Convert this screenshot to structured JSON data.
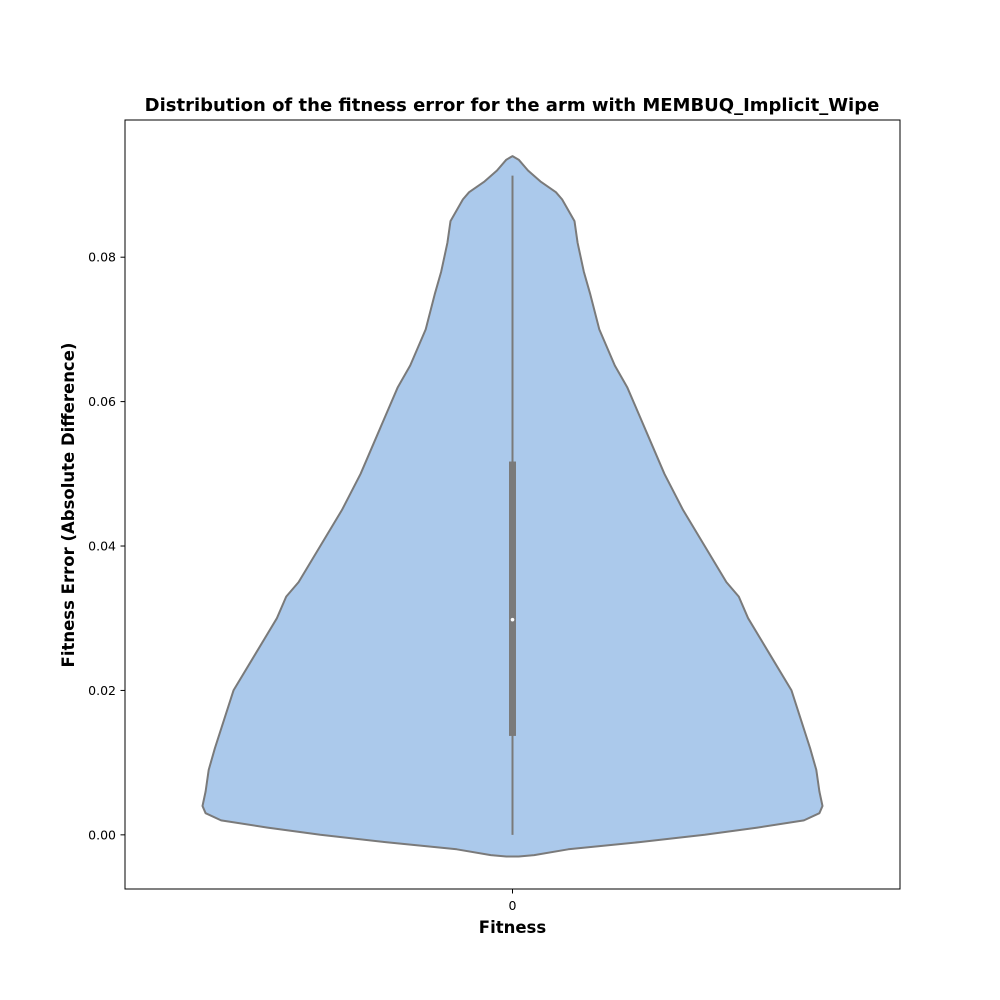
{
  "chart_data": {
    "type": "violin",
    "title": "Distribution of the fitness error for the arm with MEMBUQ_Implicit_Wipe",
    "xlabel": "Fitness",
    "ylabel": "Fitness Error (Absolute Difference)",
    "categories": [
      "0"
    ],
    "ylim": [
      -0.0075,
      0.099
    ],
    "yticks": [
      0.0,
      0.02,
      0.04,
      0.06,
      0.08
    ],
    "ytick_labels": [
      "0.00",
      "0.02",
      "0.04",
      "0.06",
      "0.08"
    ],
    "grid": false,
    "colors": {
      "fill": "#abc9eb",
      "edge": "#7a7a7a",
      "box": "#7a7a7a",
      "median": "#ffffff",
      "frame": "#000000"
    },
    "violin": {
      "category": "0",
      "density": [
        [
          -0.003,
          0.02
        ],
        [
          -0.0028,
          0.07
        ],
        [
          -0.002,
          0.18
        ],
        [
          -0.001,
          0.41
        ],
        [
          0.0,
          0.62
        ],
        [
          0.001,
          0.79
        ],
        [
          0.002,
          0.94
        ],
        [
          0.003,
          0.99
        ],
        [
          0.004,
          1.0
        ],
        [
          0.006,
          0.99
        ],
        [
          0.009,
          0.98
        ],
        [
          0.012,
          0.96
        ],
        [
          0.016,
          0.93
        ],
        [
          0.02,
          0.9
        ],
        [
          0.025,
          0.83
        ],
        [
          0.03,
          0.76
        ],
        [
          0.033,
          0.73
        ],
        [
          0.035,
          0.69
        ],
        [
          0.04,
          0.62
        ],
        [
          0.045,
          0.55
        ],
        [
          0.05,
          0.49
        ],
        [
          0.055,
          0.44
        ],
        [
          0.058,
          0.41
        ],
        [
          0.062,
          0.37
        ],
        [
          0.065,
          0.33
        ],
        [
          0.07,
          0.28
        ],
        [
          0.075,
          0.25
        ],
        [
          0.078,
          0.23
        ],
        [
          0.082,
          0.21
        ],
        [
          0.085,
          0.2
        ],
        [
          0.088,
          0.16
        ],
        [
          0.089,
          0.14
        ],
        [
          0.0905,
          0.09
        ],
        [
          0.092,
          0.05
        ],
        [
          0.0935,
          0.02
        ],
        [
          0.094,
          0.0
        ]
      ],
      "box": {
        "q1": 0.0137,
        "median": 0.0298,
        "q3": 0.0517,
        "whisker_low": 0.0,
        "whisker_high": 0.0913
      }
    }
  }
}
